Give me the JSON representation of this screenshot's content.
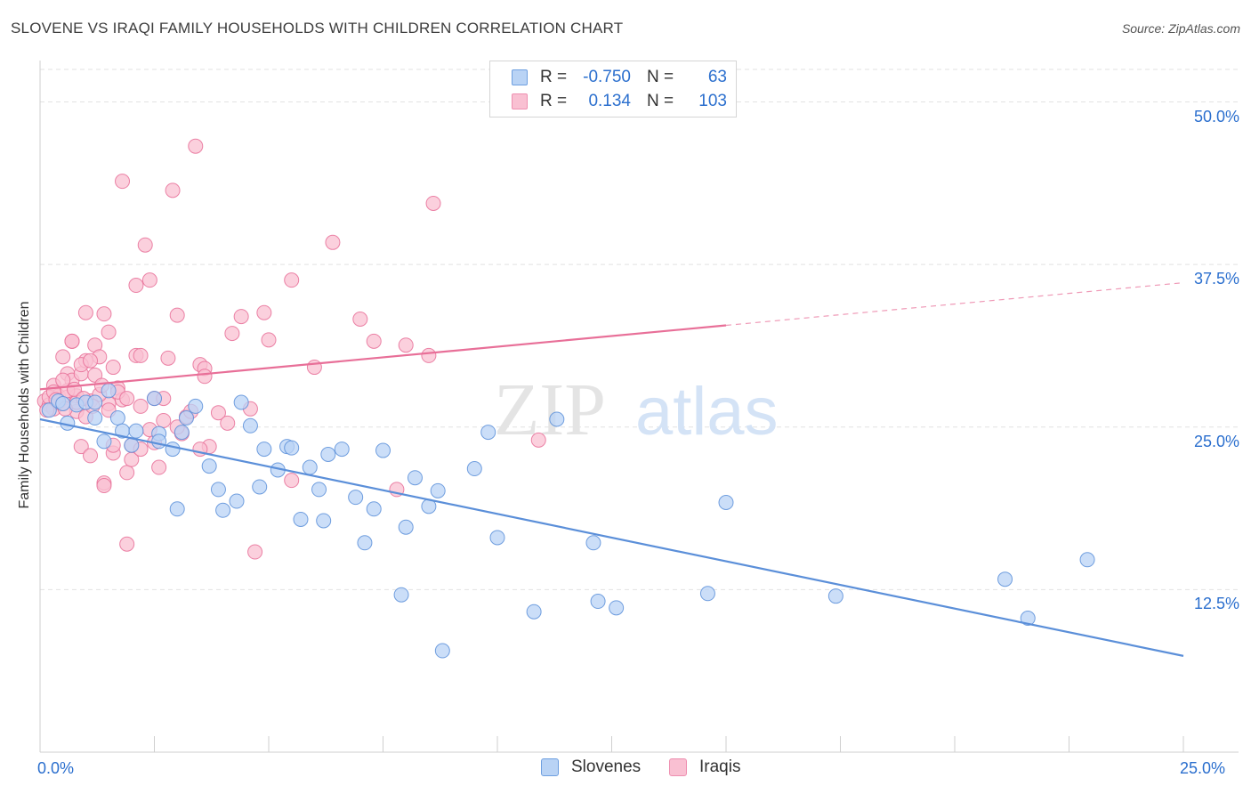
{
  "title": "SLOVENE VS IRAQI FAMILY HOUSEHOLDS WITH CHILDREN CORRELATION CHART",
  "source": "Source: ZipAtlas.com",
  "watermark": {
    "zip": "ZIP",
    "atlas": "atlas"
  },
  "legend": {
    "rows": [
      {
        "r_label": "R =",
        "r_value": "-0.750",
        "n_label": "N =",
        "n_value": "63",
        "fill": "#b9d3f5",
        "stroke": "#6e9fe0"
      },
      {
        "r_label": "R =",
        "r_value": "0.134",
        "n_label": "N =",
        "n_value": "103",
        "fill": "#f9c0d2",
        "stroke": "#ee8fb0"
      }
    ]
  },
  "bottom_legend": {
    "slovenes": "Slovenes",
    "iraqis": "Iraqis"
  },
  "chart_data": {
    "type": "scatter",
    "title": "SLOVENE VS IRAQI FAMILY HOUSEHOLDS WITH CHILDREN CORRELATION CHART",
    "xlabel": "",
    "ylabel": "Family Households with Children",
    "xlim": [
      0,
      25
    ],
    "ylim": [
      0,
      52.5
    ],
    "x_tick_labels": [
      "0.0%",
      "25.0%"
    ],
    "y_ticks": [
      12.5,
      25.0,
      37.5,
      50.0
    ],
    "y_tick_labels": [
      "12.5%",
      "25.0%",
      "37.5%",
      "50.0%"
    ],
    "grid": true,
    "legend_position": "top-center",
    "series": [
      {
        "name": "Slovenes",
        "color": "#5b8fd9",
        "fill": "#b9d3f5",
        "trend": {
          "x": [
            0,
            25
          ],
          "y": [
            25.6,
            7.4
          ],
          "dashed_from": null
        },
        "points": [
          [
            0.2,
            26.3
          ],
          [
            0.4,
            27.0
          ],
          [
            0.6,
            25.3
          ],
          [
            0.8,
            26.7
          ],
          [
            1.0,
            26.9
          ],
          [
            1.2,
            25.7
          ],
          [
            1.5,
            27.8
          ],
          [
            1.7,
            25.7
          ],
          [
            1.4,
            23.9
          ],
          [
            1.8,
            24.7
          ],
          [
            2.0,
            23.6
          ],
          [
            2.1,
            24.7
          ],
          [
            2.5,
            27.2
          ],
          [
            2.6,
            24.5
          ],
          [
            2.9,
            23.3
          ],
          [
            3.1,
            24.6
          ],
          [
            3.2,
            25.7
          ],
          [
            3.4,
            26.6
          ],
          [
            3.7,
            22.0
          ],
          [
            3.9,
            20.2
          ],
          [
            4.0,
            18.6
          ],
          [
            4.3,
            19.3
          ],
          [
            4.4,
            26.9
          ],
          [
            4.6,
            25.1
          ],
          [
            4.8,
            20.4
          ],
          [
            4.9,
            23.3
          ],
          [
            5.2,
            21.7
          ],
          [
            5.4,
            23.5
          ],
          [
            5.5,
            23.4
          ],
          [
            5.7,
            17.9
          ],
          [
            5.9,
            21.9
          ],
          [
            6.1,
            20.2
          ],
          [
            6.2,
            17.8
          ],
          [
            6.3,
            22.9
          ],
          [
            6.6,
            23.3
          ],
          [
            6.9,
            19.6
          ],
          [
            7.1,
            16.1
          ],
          [
            7.3,
            18.7
          ],
          [
            7.5,
            23.2
          ],
          [
            7.9,
            12.1
          ],
          [
            8.0,
            17.3
          ],
          [
            8.2,
            21.1
          ],
          [
            8.5,
            18.9
          ],
          [
            8.7,
            20.1
          ],
          [
            8.8,
            7.8
          ],
          [
            9.5,
            21.8
          ],
          [
            9.8,
            24.6
          ],
          [
            10.0,
            16.5
          ],
          [
            10.8,
            10.8
          ],
          [
            11.3,
            25.6
          ],
          [
            12.1,
            16.1
          ],
          [
            12.2,
            11.6
          ],
          [
            12.6,
            11.1
          ],
          [
            14.6,
            12.2
          ],
          [
            15.0,
            19.2
          ],
          [
            17.4,
            12.0
          ],
          [
            21.1,
            13.3
          ],
          [
            21.6,
            10.3
          ],
          [
            22.9,
            14.8
          ],
          [
            3.0,
            18.7
          ],
          [
            0.5,
            26.8
          ],
          [
            1.2,
            26.9
          ],
          [
            2.6,
            23.9
          ]
        ]
      },
      {
        "name": "Iraqis",
        "color": "#e86f98",
        "fill": "#f9c0d2",
        "trend": {
          "x": [
            0,
            25
          ],
          "y": [
            27.9,
            36.1
          ],
          "dashed_from": 15.0
        },
        "points": [
          [
            0.1,
            27.0
          ],
          [
            0.2,
            26.7
          ],
          [
            0.3,
            28.2
          ],
          [
            0.3,
            26.4
          ],
          [
            0.4,
            27.4
          ],
          [
            0.5,
            26.8
          ],
          [
            0.5,
            30.4
          ],
          [
            0.6,
            29.1
          ],
          [
            0.6,
            27.3
          ],
          [
            0.7,
            31.6
          ],
          [
            0.7,
            28.6
          ],
          [
            0.8,
            27.4
          ],
          [
            0.8,
            26.2
          ],
          [
            0.9,
            29.1
          ],
          [
            0.9,
            23.5
          ],
          [
            1.0,
            30.1
          ],
          [
            1.0,
            33.8
          ],
          [
            1.1,
            22.8
          ],
          [
            1.1,
            27.0
          ],
          [
            1.2,
            31.3
          ],
          [
            1.2,
            29.0
          ],
          [
            1.3,
            30.4
          ],
          [
            1.4,
            33.7
          ],
          [
            1.4,
            20.7
          ],
          [
            1.5,
            32.3
          ],
          [
            1.5,
            26.8
          ],
          [
            1.6,
            29.6
          ],
          [
            1.6,
            23.0
          ],
          [
            1.7,
            28.0
          ],
          [
            1.8,
            43.9
          ],
          [
            1.8,
            27.1
          ],
          [
            1.9,
            21.5
          ],
          [
            2.0,
            22.5
          ],
          [
            2.1,
            35.9
          ],
          [
            2.1,
            30.5
          ],
          [
            2.2,
            26.6
          ],
          [
            2.3,
            39.0
          ],
          [
            2.4,
            36.3
          ],
          [
            2.4,
            24.8
          ],
          [
            2.5,
            27.2
          ],
          [
            2.6,
            21.9
          ],
          [
            2.7,
            25.5
          ],
          [
            2.8,
            30.3
          ],
          [
            2.9,
            43.2
          ],
          [
            3.0,
            33.6
          ],
          [
            3.1,
            24.5
          ],
          [
            3.2,
            25.8
          ],
          [
            3.4,
            46.6
          ],
          [
            3.5,
            29.8
          ],
          [
            3.6,
            29.5
          ],
          [
            3.7,
            23.5
          ],
          [
            3.9,
            26.1
          ],
          [
            4.1,
            25.3
          ],
          [
            4.2,
            32.2
          ],
          [
            4.4,
            33.5
          ],
          [
            4.6,
            26.4
          ],
          [
            4.7,
            15.4
          ],
          [
            4.9,
            33.8
          ],
          [
            5.0,
            31.7
          ],
          [
            5.5,
            20.9
          ],
          [
            5.5,
            36.3
          ],
          [
            6.0,
            29.6
          ],
          [
            6.4,
            39.2
          ],
          [
            7.0,
            33.3
          ],
          [
            7.3,
            31.6
          ],
          [
            7.8,
            20.2
          ],
          [
            8.0,
            31.3
          ],
          [
            8.5,
            30.5
          ],
          [
            8.6,
            42.2
          ],
          [
            10.9,
            24.0
          ],
          [
            0.2,
            27.3
          ],
          [
            0.4,
            26.9
          ],
          [
            0.6,
            27.8
          ],
          [
            0.7,
            31.6
          ],
          [
            0.9,
            29.8
          ],
          [
            1.0,
            25.8
          ],
          [
            1.3,
            27.5
          ],
          [
            1.5,
            26.3
          ],
          [
            1.7,
            27.7
          ],
          [
            1.9,
            27.2
          ],
          [
            2.0,
            23.6
          ],
          [
            2.2,
            30.5
          ],
          [
            2.5,
            23.8
          ],
          [
            2.7,
            27.2
          ],
          [
            3.0,
            25.0
          ],
          [
            3.3,
            26.2
          ],
          [
            3.5,
            23.3
          ],
          [
            3.6,
            28.9
          ],
          [
            0.3,
            27.7
          ],
          [
            0.5,
            28.6
          ],
          [
            0.8,
            26.9
          ],
          [
            1.1,
            30.1
          ],
          [
            1.4,
            20.5
          ],
          [
            1.6,
            23.6
          ],
          [
            1.9,
            16.0
          ],
          [
            2.2,
            23.3
          ],
          [
            0.15,
            26.3
          ],
          [
            0.35,
            27.1
          ],
          [
            0.55,
            26.4
          ],
          [
            0.75,
            27.9
          ],
          [
            0.95,
            27.2
          ],
          [
            1.15,
            26.6
          ],
          [
            1.35,
            28.2
          ]
        ]
      }
    ]
  }
}
